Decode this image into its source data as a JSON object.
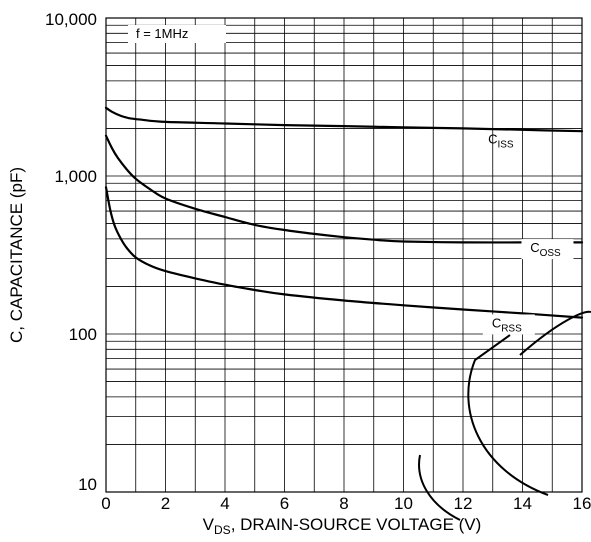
{
  "chart_data": {
    "type": "line",
    "title": "",
    "xlabel": {
      "main": "V",
      "sub": "DS",
      "rest": ", DRAIN-SOURCE VOLTAGE (V)"
    },
    "ylabel": "C, CAPACITANCE (pF)",
    "xlim": [
      0,
      16
    ],
    "ylim": [
      10,
      10000
    ],
    "yscale": "log",
    "grid": true,
    "x_ticks": [
      0,
      2,
      4,
      6,
      8,
      10,
      12,
      14,
      16
    ],
    "x_tick_labels": [
      "0",
      "2",
      "4",
      "6",
      "8",
      "10",
      "12",
      "14",
      "16"
    ],
    "y_ticks": [
      10,
      100,
      1000,
      10000
    ],
    "y_tick_labels": [
      "10",
      "100",
      "1,000",
      "10,000"
    ],
    "annotation": "f = 1MHz",
    "series": [
      {
        "name": "C_ISS",
        "label_main": "C",
        "label_sub": "ISS",
        "x": [
          0,
          0.2,
          0.5,
          0.8,
          1.2,
          2,
          4,
          6,
          8,
          10,
          12,
          14,
          16
        ],
        "y": [
          2700,
          2550,
          2400,
          2320,
          2270,
          2200,
          2150,
          2100,
          2070,
          2030,
          2000,
          1960,
          1920
        ]
      },
      {
        "name": "C_OSS",
        "label_main": "C",
        "label_sub": "OSS",
        "x": [
          0,
          0.2,
          0.4,
          0.7,
          1,
          1.5,
          2,
          3,
          4,
          5,
          6,
          7,
          8,
          9,
          10,
          12,
          14,
          16
        ],
        "y": [
          1800,
          1500,
          1300,
          1100,
          960,
          820,
          720,
          620,
          550,
          490,
          455,
          430,
          410,
          395,
          385,
          380,
          380,
          380
        ]
      },
      {
        "name": "C_RSS",
        "label_main": "C",
        "label_sub": "RSS",
        "x": [
          0,
          0.15,
          0.3,
          0.5,
          0.7,
          1,
          1.5,
          2,
          3,
          4,
          5,
          6,
          8,
          10,
          12,
          14,
          16
        ],
        "y": [
          850,
          600,
          480,
          400,
          350,
          305,
          270,
          250,
          225,
          205,
          190,
          178,
          163,
          152,
          143,
          135,
          127
        ]
      }
    ]
  }
}
